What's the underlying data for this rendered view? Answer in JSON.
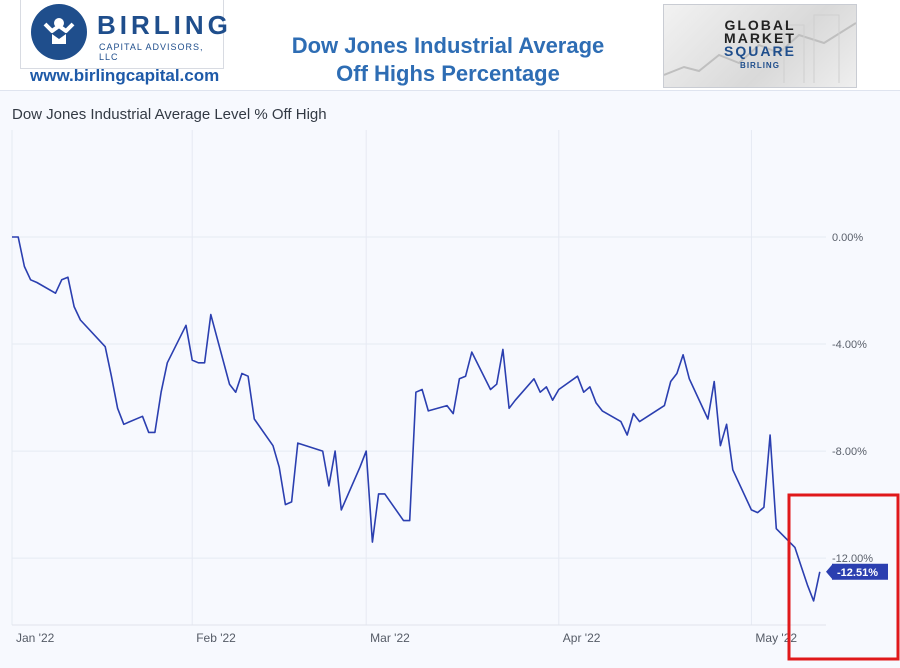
{
  "header": {
    "logo_brand": "BIRLING",
    "logo_sub": "CAPITAL ADVISORS, LLC",
    "website": "www.birlingcapital.com",
    "title_line1": "Dow Jones Industrial Average",
    "title_line2": "Off Highs Percentage",
    "badge": {
      "line1": "GLOBAL",
      "line2": "MARKET",
      "line3": "SQUARE",
      "small": "BIRLING"
    }
  },
  "colors": {
    "brand": "#1f4e8c",
    "title": "#2e6db4",
    "series": "#2b3fb0",
    "highlight": "#e0191b"
  },
  "chart_data": {
    "type": "line",
    "title": "Dow Jones Industrial Average Level % Off High",
    "x_ticks": [
      "Jan '22",
      "Feb '22",
      "Mar '22",
      "Apr '22",
      "May '22"
    ],
    "y_ticks": [
      "0.00%",
      "-4.00%",
      "-8.00%",
      "-12.00%"
    ],
    "y_tick_values": [
      0,
      -4,
      -8,
      -12
    ],
    "ylim": [
      -14.5,
      4.0
    ],
    "xlim": [
      "2022-01-03",
      "2022-05-14"
    ],
    "grid": true,
    "last_value_label": "-12.51%",
    "series": [
      {
        "x": [
          "2022-01-03",
          "2022-01-04",
          "2022-01-05",
          "2022-01-06",
          "2022-01-07",
          "2022-01-10",
          "2022-01-11",
          "2022-01-12",
          "2022-01-13",
          "2022-01-14",
          "2022-01-18",
          "2022-01-19",
          "2022-01-20",
          "2022-01-21",
          "2022-01-24",
          "2022-01-25",
          "2022-01-26",
          "2022-01-27",
          "2022-01-28",
          "2022-01-31",
          "2022-02-01",
          "2022-02-02",
          "2022-02-03",
          "2022-02-04",
          "2022-02-07",
          "2022-02-08",
          "2022-02-09",
          "2022-02-10",
          "2022-02-11",
          "2022-02-14",
          "2022-02-15",
          "2022-02-16",
          "2022-02-17",
          "2022-02-18",
          "2022-02-22",
          "2022-02-23",
          "2022-02-24",
          "2022-02-25",
          "2022-02-28",
          "2022-03-01",
          "2022-03-02",
          "2022-03-03",
          "2022-03-04",
          "2022-03-07",
          "2022-03-08",
          "2022-03-09",
          "2022-03-10",
          "2022-03-11",
          "2022-03-14",
          "2022-03-15",
          "2022-03-16",
          "2022-03-17",
          "2022-03-18",
          "2022-03-21",
          "2022-03-22",
          "2022-03-23",
          "2022-03-24",
          "2022-03-25",
          "2022-03-28",
          "2022-03-29",
          "2022-03-30",
          "2022-03-31",
          "2022-04-01",
          "2022-04-04",
          "2022-04-05",
          "2022-04-06",
          "2022-04-07",
          "2022-04-08",
          "2022-04-11",
          "2022-04-12",
          "2022-04-13",
          "2022-04-14",
          "2022-04-18",
          "2022-04-19",
          "2022-04-20",
          "2022-04-21",
          "2022-04-22",
          "2022-04-25",
          "2022-04-26",
          "2022-04-27",
          "2022-04-28",
          "2022-04-29",
          "2022-05-02",
          "2022-05-03",
          "2022-05-04",
          "2022-05-05",
          "2022-05-06",
          "2022-05-09",
          "2022-05-10",
          "2022-05-11",
          "2022-05-12",
          "2022-05-13"
        ],
        "y": [
          0.0,
          0.0,
          -1.1,
          -1.6,
          -1.7,
          -2.1,
          -1.6,
          -1.5,
          -2.6,
          -3.1,
          -4.1,
          -5.2,
          -6.4,
          -7.0,
          -6.7,
          -7.3,
          -7.3,
          -5.8,
          -4.7,
          -3.3,
          -4.6,
          -4.7,
          -4.7,
          -2.9,
          -5.5,
          -5.8,
          -5.1,
          -5.2,
          -6.8,
          -7.8,
          -8.6,
          -10.0,
          -9.9,
          -7.7,
          -8.0,
          -9.3,
          -8.0,
          -10.2,
          -8.6,
          -8.0,
          -11.4,
          -9.6,
          -9.6,
          -10.6,
          -10.6,
          -5.8,
          -5.7,
          -6.5,
          -6.3,
          -6.6,
          -5.3,
          -5.2,
          -4.3,
          -5.7,
          -5.5,
          -4.2,
          -6.4,
          -6.1,
          -5.3,
          -5.8,
          -5.6,
          -6.1,
          -5.7,
          -5.2,
          -5.8,
          -5.6,
          -6.2,
          -6.5,
          -6.9,
          -7.4,
          -6.6,
          -6.9,
          -6.3,
          -5.4,
          -5.1,
          -4.4,
          -5.3,
          -6.8,
          -5.4,
          -7.8,
          -7.0,
          -8.7,
          -10.2,
          -10.3,
          -10.1,
          -7.4,
          -10.9,
          -11.6,
          -12.3,
          -13.0,
          -13.6,
          -12.51
        ]
      }
    ]
  }
}
